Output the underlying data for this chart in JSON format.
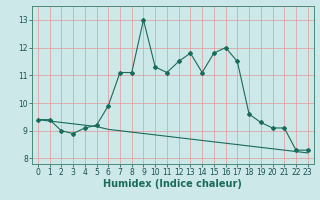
{
  "title": "",
  "xlabel": "Humidex (Indice chaleur)",
  "ylabel": "",
  "background_color": "#cce8e8",
  "line_color": "#1a6b5a",
  "grid_color": "#e8a0a0",
  "ax_background": "#cce8e8",
  "x_humidex": [
    0,
    1,
    2,
    3,
    4,
    5,
    6,
    7,
    8,
    9,
    10,
    11,
    12,
    13,
    14,
    15,
    16,
    17,
    18,
    19,
    20,
    21,
    22,
    23
  ],
  "y_curve": [
    9.4,
    9.4,
    9.0,
    8.9,
    9.1,
    9.2,
    9.9,
    11.1,
    11.1,
    13.0,
    11.3,
    11.1,
    11.5,
    11.8,
    11.1,
    11.8,
    12.0,
    11.5,
    9.6,
    9.3,
    9.1,
    9.1,
    8.3,
    8.3
  ],
  "y_line": [
    9.4,
    9.35,
    9.3,
    9.25,
    9.2,
    9.15,
    9.05,
    9.0,
    8.95,
    8.9,
    8.85,
    8.8,
    8.75,
    8.7,
    8.65,
    8.6,
    8.55,
    8.5,
    8.45,
    8.4,
    8.35,
    8.3,
    8.25,
    8.2
  ],
  "ylim": [
    7.8,
    13.5
  ],
  "xlim": [
    -0.5,
    23.5
  ],
  "yticks": [
    8,
    9,
    10,
    11,
    12,
    13
  ],
  "xticks": [
    0,
    1,
    2,
    3,
    4,
    5,
    6,
    7,
    8,
    9,
    10,
    11,
    12,
    13,
    14,
    15,
    16,
    17,
    18,
    19,
    20,
    21,
    22,
    23
  ],
  "tick_fontsize": 5.5,
  "xlabel_fontsize": 7,
  "marker": "D",
  "marker_size": 2.0,
  "linewidth": 0.8
}
